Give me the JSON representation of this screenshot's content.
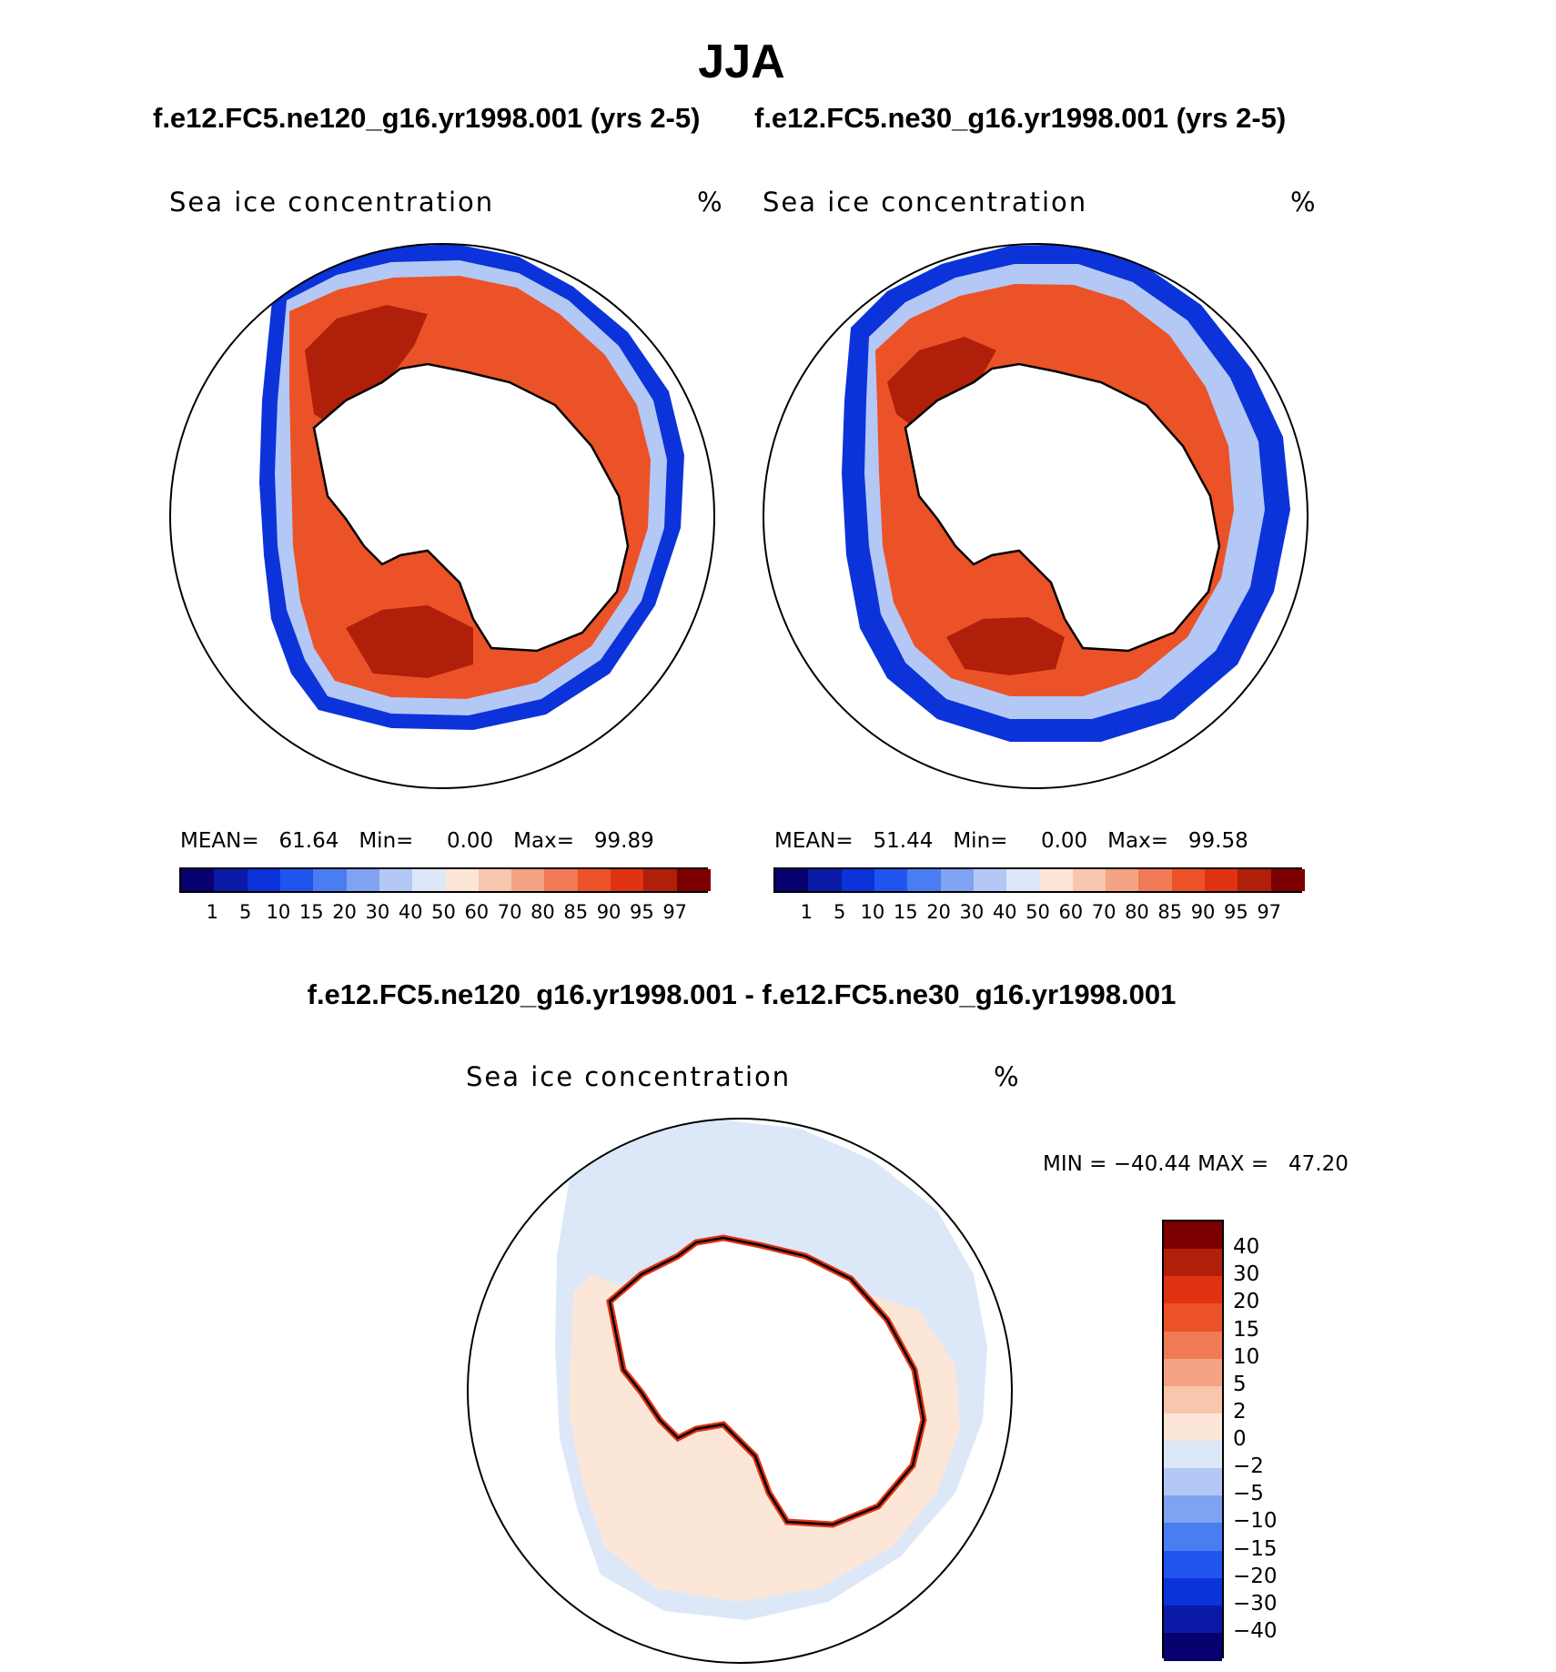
{
  "chart_data": {
    "type": "heatmap",
    "title": "JJA",
    "palette": {
      "blue_to_red": [
        "#08006e",
        "#0a1aa6",
        "#0b33d9",
        "#1f55ee",
        "#4a7cf2",
        "#7fa2f3",
        "#b3c8f5",
        "#dce8f8",
        "#fbe6d8",
        "#f7c6ad",
        "#f4a384",
        "#ef7a55",
        "#ec5227",
        "#e03312",
        "#b01f0a",
        "#7d0000"
      ]
    },
    "panels": [
      {
        "case": "f.e12.FC5.ne120_g16.yr1998.001 (yrs 2-5)",
        "variable": "Sea ice concentration",
        "units": "%",
        "stats": {
          "mean_label": "MEAN=",
          "mean": "61.64",
          "min_label": "Min=",
          "min": "0.00",
          "max_label": "Max=",
          "max": "99.89"
        },
        "levels": [
          "1",
          "5",
          "10",
          "15",
          "20",
          "30",
          "40",
          "50",
          "60",
          "70",
          "80",
          "85",
          "90",
          "95",
          "97"
        ]
      },
      {
        "case": "f.e12.FC5.ne30_g16.yr1998.001 (yrs 2-5)",
        "variable": "Sea ice concentration",
        "units": "%",
        "stats": {
          "mean_label": "MEAN=",
          "mean": "51.44",
          "min_label": "Min=",
          "min": "0.00",
          "max_label": "Max=",
          "max": "99.58"
        },
        "levels": [
          "1",
          "5",
          "10",
          "15",
          "20",
          "30",
          "40",
          "50",
          "60",
          "70",
          "80",
          "85",
          "90",
          "95",
          "97"
        ]
      }
    ],
    "difference": {
      "title": "f.e12.FC5.ne120_g16.yr1998.001 - f.e12.FC5.ne30_g16.yr1998.001",
      "variable": "Sea ice concentration",
      "units": "%",
      "stats": {
        "min_label": "MIN =",
        "min": "−40.44",
        "max_label": "MAX =",
        "max": "47.20"
      },
      "levels": [
        "40",
        "30",
        "20",
        "15",
        "10",
        "5",
        "2",
        "0",
        "−2",
        "−5",
        "−10",
        "−15",
        "−20",
        "−30",
        "−40"
      ]
    }
  }
}
